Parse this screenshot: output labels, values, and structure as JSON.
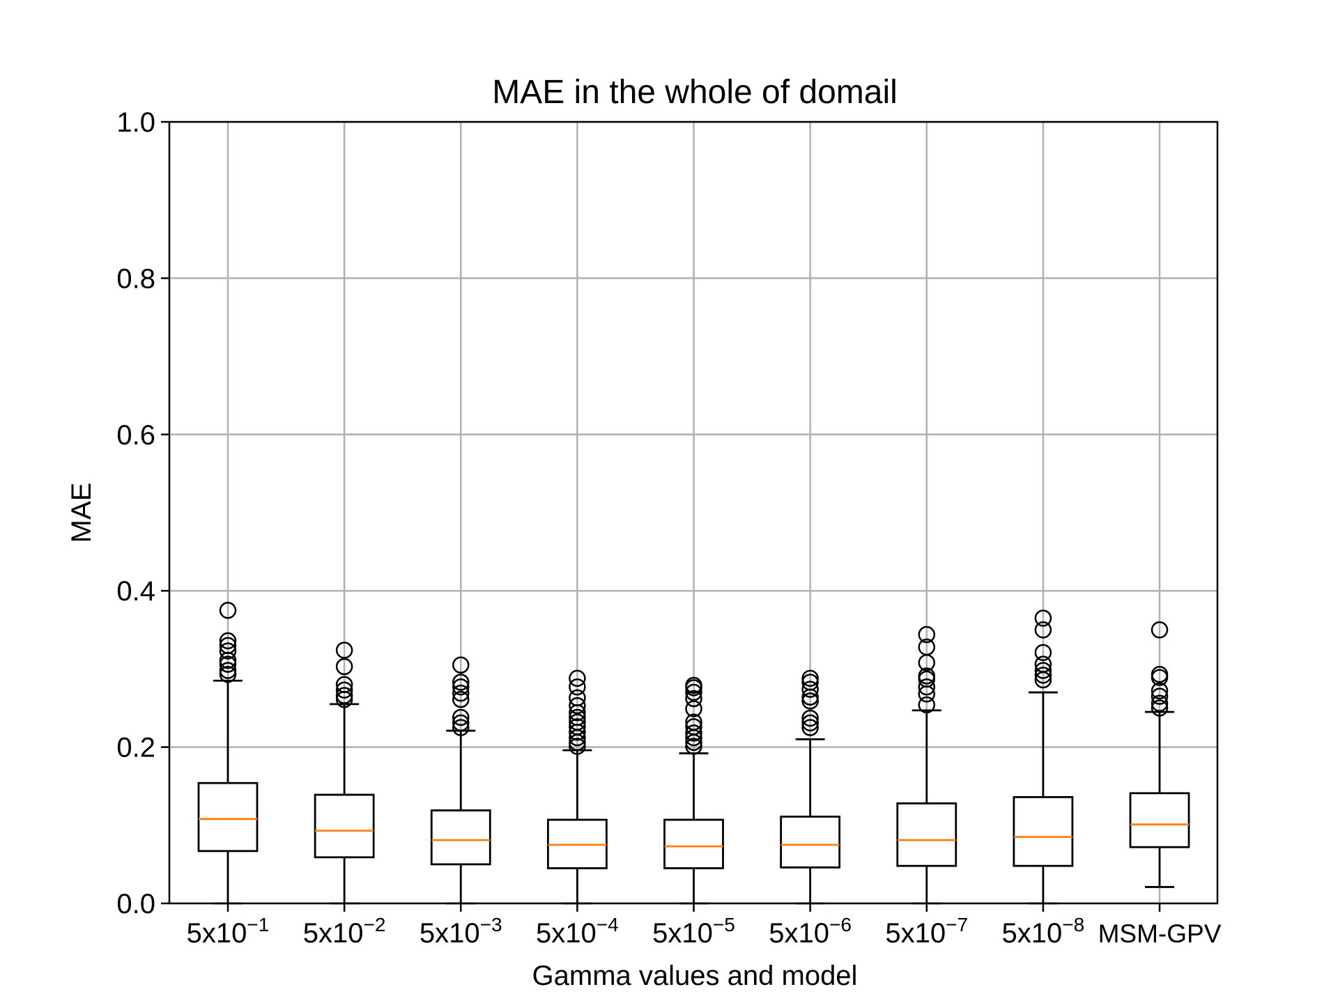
{
  "chart_data": {
    "type": "boxplot",
    "title": "MAE in the whole of domail",
    "xlabel": "Gamma values and model",
    "ylabel": "MAE",
    "ylim": [
      0.0,
      1.0
    ],
    "yticks": [
      "0.0",
      "0.2",
      "0.4",
      "0.6",
      "0.8",
      "1.0"
    ],
    "grid": true,
    "categories": [
      {
        "base": "5x10",
        "exp": "−1"
      },
      {
        "base": "5x10",
        "exp": "−2"
      },
      {
        "base": "5x10",
        "exp": "−3"
      },
      {
        "base": "5x10",
        "exp": "−4"
      },
      {
        "base": "5x10",
        "exp": "−5"
      },
      {
        "base": "5x10",
        "exp": "−6"
      },
      {
        "base": "5x10",
        "exp": "−7"
      },
      {
        "base": "5x10",
        "exp": "−8"
      },
      {
        "base": "MSM-GPV",
        "exp": ""
      }
    ],
    "boxes": [
      {
        "whislo": 0.0,
        "q1": 0.067,
        "med": 0.108,
        "q3": 0.154,
        "whishi": 0.285,
        "fliers": [
          0.293,
          0.298,
          0.306,
          0.311,
          0.323,
          0.33,
          0.336,
          0.375
        ]
      },
      {
        "whislo": 0.0,
        "q1": 0.059,
        "med": 0.093,
        "q3": 0.139,
        "whishi": 0.255,
        "fliers": [
          0.261,
          0.266,
          0.273,
          0.28,
          0.303,
          0.324
        ]
      },
      {
        "whislo": 0.0,
        "q1": 0.05,
        "med": 0.081,
        "q3": 0.119,
        "whishi": 0.221,
        "fliers": [
          0.225,
          0.231,
          0.238,
          0.261,
          0.269,
          0.277,
          0.283,
          0.305
        ]
      },
      {
        "whislo": 0.0,
        "q1": 0.045,
        "med": 0.075,
        "q3": 0.107,
        "whishi": 0.196,
        "fliers": [
          0.201,
          0.206,
          0.212,
          0.219,
          0.226,
          0.232,
          0.238,
          0.244,
          0.253,
          0.263,
          0.277,
          0.288
        ]
      },
      {
        "whislo": 0.0,
        "q1": 0.045,
        "med": 0.073,
        "q3": 0.107,
        "whishi": 0.192,
        "fliers": [
          0.201,
          0.206,
          0.212,
          0.218,
          0.226,
          0.232,
          0.249,
          0.262,
          0.27,
          0.276,
          0.279
        ]
      },
      {
        "whislo": 0.0,
        "q1": 0.046,
        "med": 0.075,
        "q3": 0.111,
        "whishi": 0.21,
        "fliers": [
          0.225,
          0.231,
          0.237,
          0.259,
          0.264,
          0.274,
          0.283,
          0.288
        ]
      },
      {
        "whislo": 0.0,
        "q1": 0.048,
        "med": 0.081,
        "q3": 0.128,
        "whishi": 0.247,
        "fliers": [
          0.254,
          0.268,
          0.277,
          0.287,
          0.291,
          0.308,
          0.328,
          0.344
        ]
      },
      {
        "whislo": 0.0,
        "q1": 0.048,
        "med": 0.085,
        "q3": 0.136,
        "whishi": 0.27,
        "fliers": [
          0.286,
          0.292,
          0.298,
          0.306,
          0.321,
          0.35,
          0.365
        ]
      },
      {
        "whislo": 0.021,
        "q1": 0.072,
        "med": 0.101,
        "q3": 0.141,
        "whishi": 0.245,
        "fliers": [
          0.25,
          0.256,
          0.265,
          0.272,
          0.289,
          0.293,
          0.35
        ]
      }
    ],
    "colors": {
      "box": "#000000",
      "median": "#ff7f0e",
      "grid": "#b0b0b0",
      "axes": "#000000"
    }
  }
}
